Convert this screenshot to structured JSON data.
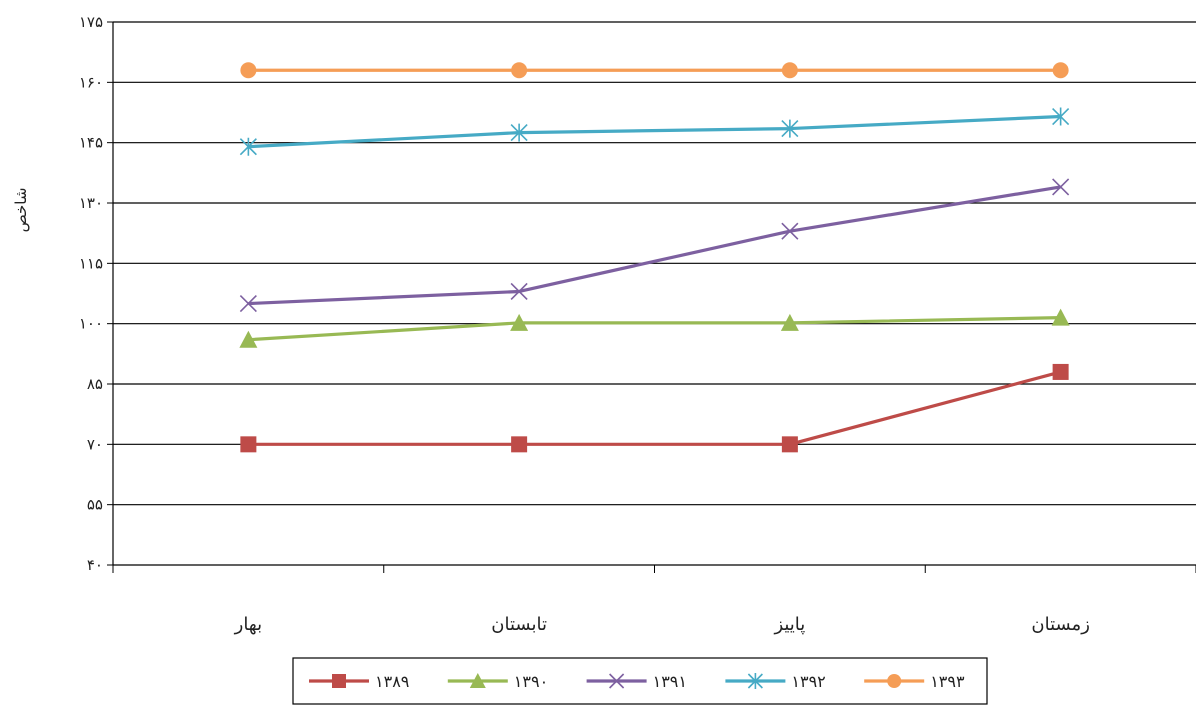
{
  "chart_data": {
    "type": "line",
    "title": "",
    "xlabel": "",
    "ylabel": "شاخص",
    "ylim": [
      40,
      175
    ],
    "yticks": [
      40,
      55,
      70,
      85,
      100,
      115,
      130,
      145,
      160,
      175
    ],
    "ytick_labels": [
      "۴۰",
      "۵۵",
      "۷۰",
      "۸۵",
      "۱۰۰",
      "۱۱۵",
      "۱۳۰",
      "۱۴۵",
      "۱۶۰",
      "۱۷۵"
    ],
    "categories": [
      "بهار",
      "تابستان",
      "پاییز",
      "زمستان"
    ],
    "grid": true,
    "legend": "bottom",
    "series": [
      {
        "name": "۱۳۸۹",
        "values": [
          70,
          70,
          70,
          88
        ],
        "color": "#be4b48",
        "marker": "square"
      },
      {
        "name": "۱۳۹۰",
        "values": [
          96,
          100.2,
          100.2,
          101.5
        ],
        "color": "#98b954",
        "marker": "triangle"
      },
      {
        "name": "۱۳۹۱",
        "values": [
          105,
          108,
          123,
          134
        ],
        "color": "#7d60a0",
        "marker": "x"
      },
      {
        "name": "۱۳۹۲",
        "values": [
          144,
          147.5,
          148.5,
          151.5
        ],
        "color": "#46aac5",
        "marker": "star"
      },
      {
        "name": "۱۳۹۳",
        "values": [
          163,
          163,
          163,
          163
        ],
        "color": "#f59d56",
        "marker": "circle"
      }
    ]
  }
}
